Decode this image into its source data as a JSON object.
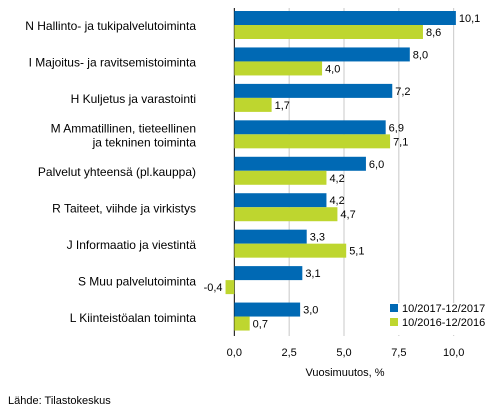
{
  "chart_data": {
    "type": "bar",
    "orientation": "horizontal",
    "categories": [
      [
        "N Hallinto- ja tukipalvelutoiminta"
      ],
      [
        "I Majoitus- ja ravitsemistoiminta"
      ],
      [
        "H Kuljetus ja varastointi"
      ],
      [
        "M Ammatillinen, tieteellinen",
        "ja tekninen toiminta"
      ],
      [
        "Palvelut yhteensä (pl.kauppa)"
      ],
      [
        "R Taiteet, viihde ja virkistys"
      ],
      [
        "J Informaatio ja viestintä"
      ],
      [
        "S Muu palvelutoiminta"
      ],
      [
        "L Kiinteistöalan toiminta"
      ]
    ],
    "series": [
      {
        "name": "10/2017-12/2017",
        "color": "#0069b4",
        "values": [
          10.1,
          8.0,
          7.2,
          6.9,
          6.0,
          4.2,
          3.3,
          3.1,
          3.0
        ]
      },
      {
        "name": "10/2016-12/2016",
        "color": "#bed62f",
        "values": [
          8.6,
          4.0,
          1.7,
          7.1,
          4.2,
          4.7,
          5.1,
          -0.4,
          0.7
        ]
      }
    ],
    "value_labels": [
      [
        "10,1",
        "8,0",
        "7,2",
        "6,9",
        "6,0",
        "4,2",
        "3,3",
        "3,1",
        "3,0"
      ],
      [
        "8,6",
        "4,0",
        "1,7",
        "7,1",
        "4,2",
        "4,7",
        "5,1",
        "-0,4",
        "0,7"
      ]
    ],
    "xlabel": "Vuosimuutos, %",
    "xlim": [
      -1.2,
      11.2
    ],
    "xticks": [
      0,
      2.5,
      5,
      7.5,
      10
    ],
    "xtick_labels": [
      "0,0",
      "2,5",
      "5,0",
      "7,5",
      "10,0"
    ],
    "grid": "vertical",
    "legend_position": "bottom-right"
  },
  "source": "Lähde: Tilastokeskus"
}
